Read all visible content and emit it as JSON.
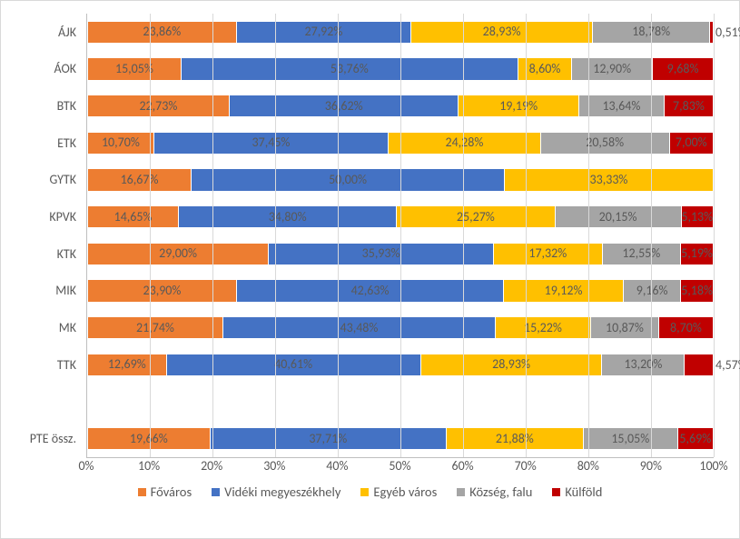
{
  "chart": {
    "type": "stacked-bar-horizontal-100pct",
    "background_color": "#ffffff",
    "border_color": "#d9d9d9",
    "grid_color": "#d9d9d9",
    "axis_line_color": "#bfbfbf",
    "text_color": "#595959",
    "label_fontsize": 14,
    "xaxis": {
      "min": 0,
      "max": 100,
      "tick_step": 10,
      "ticks": [
        "0%",
        "10%",
        "20%",
        "30%",
        "40%",
        "50%",
        "60%",
        "70%",
        "80%",
        "90%",
        "100%"
      ]
    },
    "series": [
      {
        "key": "fovaros",
        "label": "Főváros",
        "color": "#ed7d31"
      },
      {
        "key": "videki",
        "label": "Vidéki megyeszékhely",
        "color": "#4472c4"
      },
      {
        "key": "egyeb",
        "label": "Egyéb város",
        "color": "#ffc000"
      },
      {
        "key": "kozseg",
        "label": "Község, falu",
        "color": "#a5a5a5"
      },
      {
        "key": "kulfold",
        "label": "Külföld",
        "color": "#c00000"
      }
    ],
    "categories": [
      {
        "key": "ajk",
        "label": "ÁJK",
        "values": {
          "fovaros": 23.86,
          "videki": 27.92,
          "egyeb": 28.93,
          "kozseg": 18.78,
          "kulfold": 0.51
        }
      },
      {
        "key": "aok",
        "label": "ÁOK",
        "values": {
          "fovaros": 15.05,
          "videki": 53.76,
          "egyeb": 8.6,
          "kozseg": 12.9,
          "kulfold": 9.68
        }
      },
      {
        "key": "btk",
        "label": "BTK",
        "values": {
          "fovaros": 22.73,
          "videki": 36.62,
          "egyeb": 19.19,
          "kozseg": 13.64,
          "kulfold": 7.83
        }
      },
      {
        "key": "etk",
        "label": "ETK",
        "values": {
          "fovaros": 10.7,
          "videki": 37.45,
          "egyeb": 24.28,
          "kozseg": 20.58,
          "kulfold": 7.0
        }
      },
      {
        "key": "gytk",
        "label": "GYTK",
        "values": {
          "fovaros": 16.67,
          "videki": 50.0,
          "egyeb": 33.33,
          "kozseg": 0.0,
          "kulfold": 0.0
        }
      },
      {
        "key": "kpvk",
        "label": "KPVK",
        "values": {
          "fovaros": 14.65,
          "videki": 34.8,
          "egyeb": 25.27,
          "kozseg": 20.15,
          "kulfold": 5.13
        }
      },
      {
        "key": "ktk",
        "label": "KTK",
        "values": {
          "fovaros": 29.0,
          "videki": 35.93,
          "egyeb": 17.32,
          "kozseg": 12.55,
          "kulfold": 5.19
        }
      },
      {
        "key": "mik",
        "label": "MIK",
        "values": {
          "fovaros": 23.9,
          "videki": 42.63,
          "egyeb": 19.12,
          "kozseg": 9.16,
          "kulfold": 5.18
        }
      },
      {
        "key": "mk",
        "label": "MK",
        "values": {
          "fovaros": 21.74,
          "videki": 43.48,
          "egyeb": 15.22,
          "kozseg": 10.87,
          "kulfold": 8.7
        }
      },
      {
        "key": "ttk",
        "label": "TTK",
        "values": {
          "fovaros": 12.69,
          "videki": 40.61,
          "egyeb": 28.93,
          "kozseg": 13.2,
          "kulfold": 4.57
        }
      },
      {
        "key": "gap",
        "label": "",
        "gap": true
      },
      {
        "key": "pte",
        "label": "PTE össz.",
        "values": {
          "fovaros": 19.66,
          "videki": 37.71,
          "egyeb": 21.88,
          "kozseg": 15.05,
          "kulfold": 5.69
        }
      }
    ],
    "bar_fill_ratio": 0.62
  }
}
